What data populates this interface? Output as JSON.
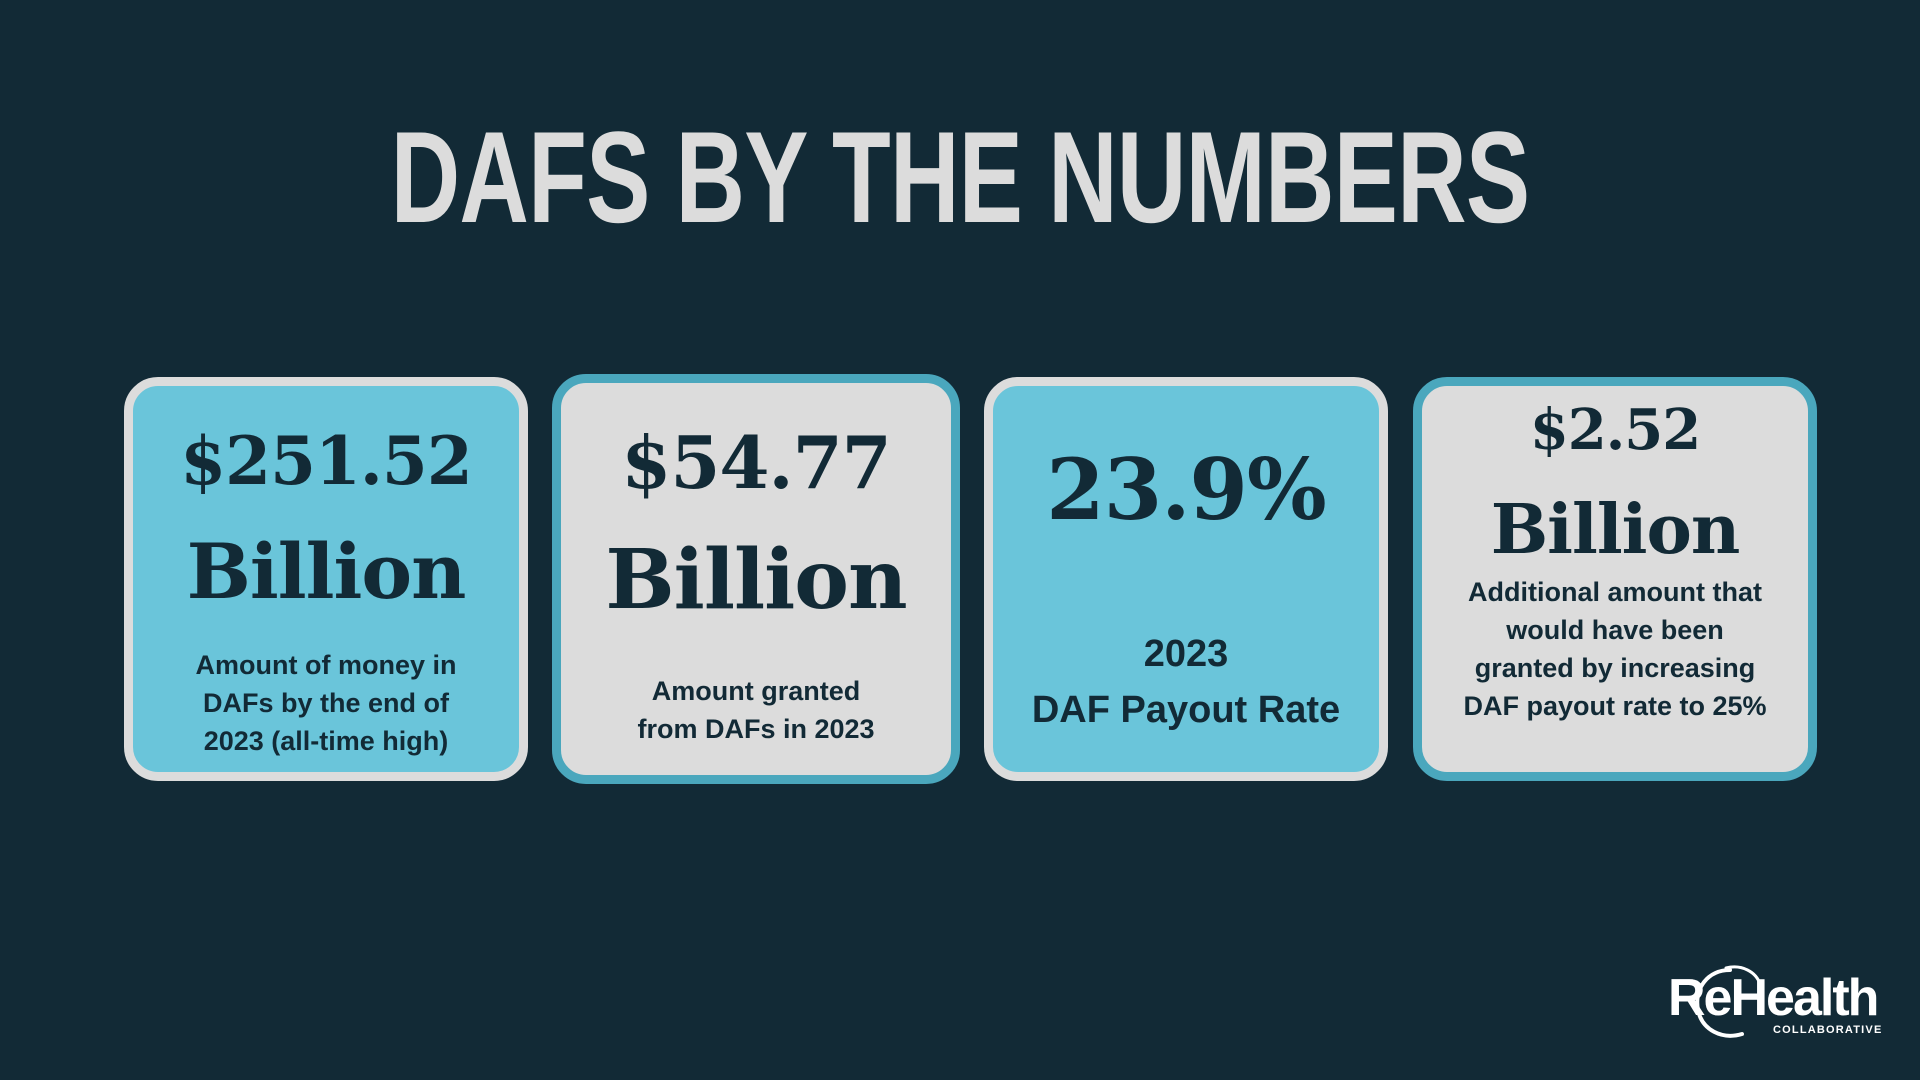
{
  "title": "DAFS BY THE NUMBERS",
  "cards": [
    {
      "value": "$251.52",
      "unit": "Billion",
      "description_lines": [
        "Amount of money in",
        "DAFs by the end of",
        "2023 (all-time high)"
      ]
    },
    {
      "value": "$54.77",
      "unit": "Billion",
      "description_lines": [
        "Amount granted",
        "from DAFs in 2023"
      ]
    },
    {
      "value": "23.9%",
      "unit": "",
      "description_lines": [
        "2023",
        "DAF Payout Rate"
      ]
    },
    {
      "value": "$2.52",
      "unit": "Billion",
      "description_lines": [
        "Additional amount that",
        "would have been",
        "granted by increasing",
        "DAF payout rate to 25%"
      ]
    }
  ],
  "logo": {
    "name": "ReHealth",
    "tagline": "COLLABORATIVE"
  },
  "colors": {
    "background": "#122a36",
    "card_blue": "#6ac5da",
    "card_grey": "#dcdcdc",
    "border_teal": "#4aa7bd",
    "text_dark": "#122a36"
  }
}
